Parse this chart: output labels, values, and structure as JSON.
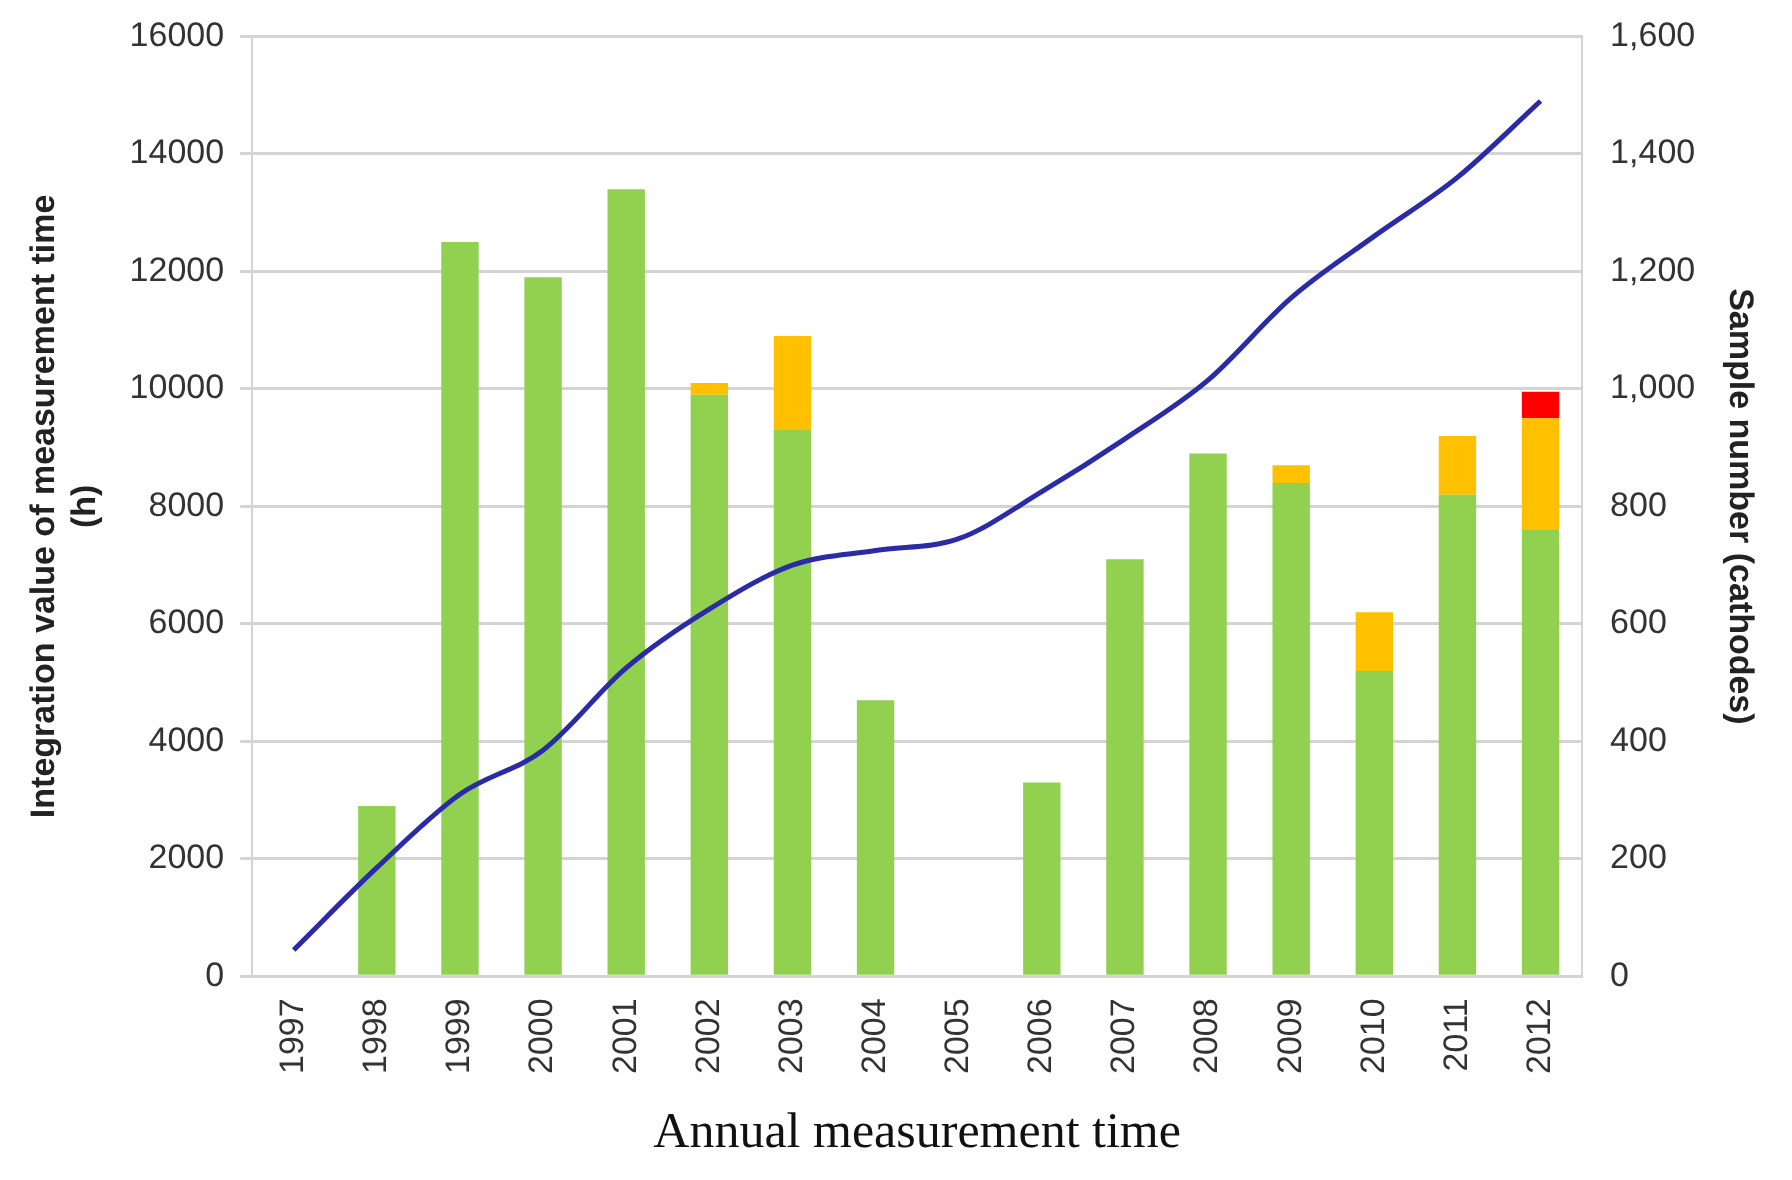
{
  "chart_data": {
    "type": "bar",
    "stacked": true,
    "grid": "y",
    "marker": "none",
    "xlabel": "Annual measurement time",
    "ylabel": "Integration value of measurement time (h)",
    "y2label": "Sample number (cathodes)",
    "categories": [
      "1997",
      "1998",
      "1999",
      "2000",
      "2001",
      "2002",
      "2003",
      "2004",
      "2005",
      "2006",
      "2007",
      "2008",
      "2009",
      "2010",
      "2011",
      "2012"
    ],
    "series": [
      {
        "color": "#92d050",
        "values": [
          null,
          2900,
          12500,
          11900,
          13400,
          9900,
          9300,
          4700,
          null,
          3300,
          7100,
          8900,
          8400,
          5200,
          8200,
          7600
        ]
      },
      {
        "color": "#ffc000",
        "values": [
          null,
          null,
          null,
          null,
          null,
          200,
          1600,
          null,
          null,
          null,
          null,
          null,
          300,
          1000,
          1000,
          1900
        ]
      },
      {
        "color": "#ff0000",
        "values": [
          null,
          null,
          null,
          null,
          null,
          null,
          null,
          null,
          null,
          null,
          null,
          null,
          null,
          null,
          null,
          450
        ]
      },
      {
        "type": "line",
        "axis": "y2",
        "color": "#2b2ba8",
        "values": [
          45,
          185,
          310,
          385,
          525,
          625,
          700,
          725,
          745,
          825,
          915,
          1015,
          1155,
          1260,
          1360,
          1490
        ]
      }
    ],
    "ylim": [
      0,
      16000
    ],
    "yticks": [
      0,
      2000,
      4000,
      6000,
      8000,
      10000,
      12000,
      14000,
      16000
    ],
    "y2lim": [
      0,
      1600
    ],
    "y2ticks": [
      0,
      200,
      400,
      600,
      800,
      {
        "value": 1000,
        "label": "1,000"
      },
      {
        "value": 1200,
        "label": "1,200"
      },
      {
        "value": 1400,
        "label": "1,400"
      },
      {
        "value": 1600,
        "label": "1,600"
      }
    ]
  }
}
